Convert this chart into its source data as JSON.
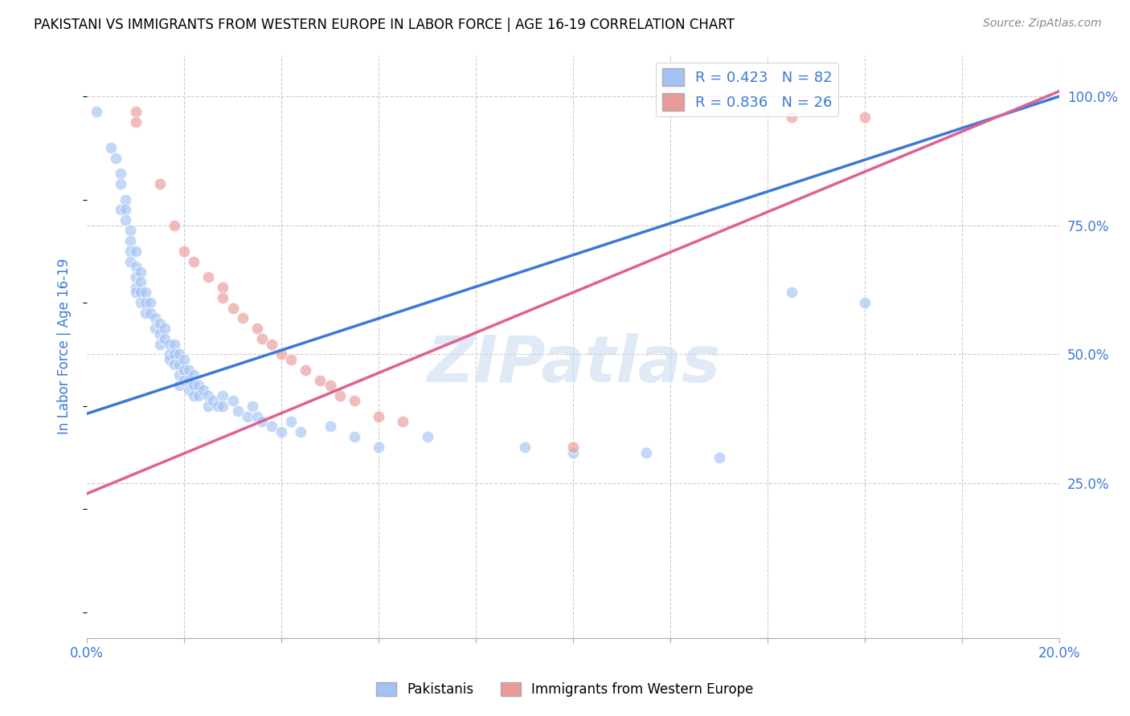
{
  "title": "PAKISTANI VS IMMIGRANTS FROM WESTERN EUROPE IN LABOR FORCE | AGE 16-19 CORRELATION CHART",
  "source": "Source: ZipAtlas.com",
  "ylabel": "In Labor Force | Age 16-19",
  "xlim": [
    0.0,
    0.2
  ],
  "ylim": [
    -0.05,
    1.08
  ],
  "yticks_right": [
    0.25,
    0.5,
    0.75,
    1.0
  ],
  "yticklabels_right": [
    "25.0%",
    "50.0%",
    "75.0%",
    "100.0%"
  ],
  "blue_color": "#a4c2f4",
  "pink_color": "#ea9999",
  "blue_line_color": "#3c78d8",
  "pink_line_color": "#e06090",
  "legend_R1": "R = 0.423",
  "legend_N1": "N = 82",
  "legend_R2": "R = 0.836",
  "legend_N2": "N = 26",
  "watermark": "ZIPatlas",
  "watermark_color": "#c8d8f0",
  "title_fontsize": 12,
  "source_fontsize": 10,
  "axis_label_color": "#3c78d8",
  "tick_color": "#3c78d8",
  "blue_scatter": [
    [
      0.002,
      0.97
    ],
    [
      0.005,
      0.9
    ],
    [
      0.006,
      0.88
    ],
    [
      0.007,
      0.85
    ],
    [
      0.007,
      0.83
    ],
    [
      0.007,
      0.78
    ],
    [
      0.008,
      0.8
    ],
    [
      0.008,
      0.78
    ],
    [
      0.008,
      0.76
    ],
    [
      0.009,
      0.74
    ],
    [
      0.009,
      0.72
    ],
    [
      0.009,
      0.7
    ],
    [
      0.009,
      0.68
    ],
    [
      0.01,
      0.7
    ],
    [
      0.01,
      0.67
    ],
    [
      0.01,
      0.65
    ],
    [
      0.01,
      0.63
    ],
    [
      0.01,
      0.62
    ],
    [
      0.011,
      0.66
    ],
    [
      0.011,
      0.64
    ],
    [
      0.011,
      0.62
    ],
    [
      0.011,
      0.6
    ],
    [
      0.012,
      0.62
    ],
    [
      0.012,
      0.6
    ],
    [
      0.012,
      0.58
    ],
    [
      0.013,
      0.6
    ],
    [
      0.013,
      0.58
    ],
    [
      0.014,
      0.57
    ],
    [
      0.014,
      0.55
    ],
    [
      0.015,
      0.56
    ],
    [
      0.015,
      0.54
    ],
    [
      0.015,
      0.52
    ],
    [
      0.016,
      0.55
    ],
    [
      0.016,
      0.53
    ],
    [
      0.017,
      0.52
    ],
    [
      0.017,
      0.5
    ],
    [
      0.017,
      0.49
    ],
    [
      0.018,
      0.52
    ],
    [
      0.018,
      0.5
    ],
    [
      0.018,
      0.48
    ],
    [
      0.019,
      0.5
    ],
    [
      0.019,
      0.48
    ],
    [
      0.019,
      0.46
    ],
    [
      0.019,
      0.44
    ],
    [
      0.02,
      0.49
    ],
    [
      0.02,
      0.47
    ],
    [
      0.02,
      0.45
    ],
    [
      0.021,
      0.47
    ],
    [
      0.021,
      0.45
    ],
    [
      0.021,
      0.43
    ],
    [
      0.022,
      0.46
    ],
    [
      0.022,
      0.44
    ],
    [
      0.022,
      0.42
    ],
    [
      0.023,
      0.44
    ],
    [
      0.023,
      0.42
    ],
    [
      0.024,
      0.43
    ],
    [
      0.025,
      0.42
    ],
    [
      0.025,
      0.4
    ],
    [
      0.026,
      0.41
    ],
    [
      0.027,
      0.4
    ],
    [
      0.028,
      0.42
    ],
    [
      0.028,
      0.4
    ],
    [
      0.03,
      0.41
    ],
    [
      0.031,
      0.39
    ],
    [
      0.033,
      0.38
    ],
    [
      0.034,
      0.4
    ],
    [
      0.035,
      0.38
    ],
    [
      0.036,
      0.37
    ],
    [
      0.038,
      0.36
    ],
    [
      0.04,
      0.35
    ],
    [
      0.042,
      0.37
    ],
    [
      0.044,
      0.35
    ],
    [
      0.05,
      0.36
    ],
    [
      0.055,
      0.34
    ],
    [
      0.06,
      0.32
    ],
    [
      0.07,
      0.34
    ],
    [
      0.09,
      0.32
    ],
    [
      0.1,
      0.31
    ],
    [
      0.115,
      0.31
    ],
    [
      0.13,
      0.3
    ],
    [
      0.145,
      0.62
    ],
    [
      0.16,
      0.6
    ]
  ],
  "pink_scatter": [
    [
      0.01,
      0.97
    ],
    [
      0.01,
      0.95
    ],
    [
      0.015,
      0.83
    ],
    [
      0.018,
      0.75
    ],
    [
      0.02,
      0.7
    ],
    [
      0.022,
      0.68
    ],
    [
      0.025,
      0.65
    ],
    [
      0.028,
      0.63
    ],
    [
      0.028,
      0.61
    ],
    [
      0.03,
      0.59
    ],
    [
      0.032,
      0.57
    ],
    [
      0.035,
      0.55
    ],
    [
      0.036,
      0.53
    ],
    [
      0.038,
      0.52
    ],
    [
      0.04,
      0.5
    ],
    [
      0.042,
      0.49
    ],
    [
      0.045,
      0.47
    ],
    [
      0.048,
      0.45
    ],
    [
      0.05,
      0.44
    ],
    [
      0.052,
      0.42
    ],
    [
      0.055,
      0.41
    ],
    [
      0.06,
      0.38
    ],
    [
      0.065,
      0.37
    ],
    [
      0.1,
      0.32
    ],
    [
      0.145,
      0.96
    ],
    [
      0.16,
      0.96
    ]
  ],
  "blue_line": {
    "x0": 0.0,
    "y0": 0.385,
    "x1": 0.2,
    "y1": 1.0
  },
  "pink_line": {
    "x0": 0.0,
    "y0": 0.23,
    "x1": 0.2,
    "y1": 1.01
  }
}
